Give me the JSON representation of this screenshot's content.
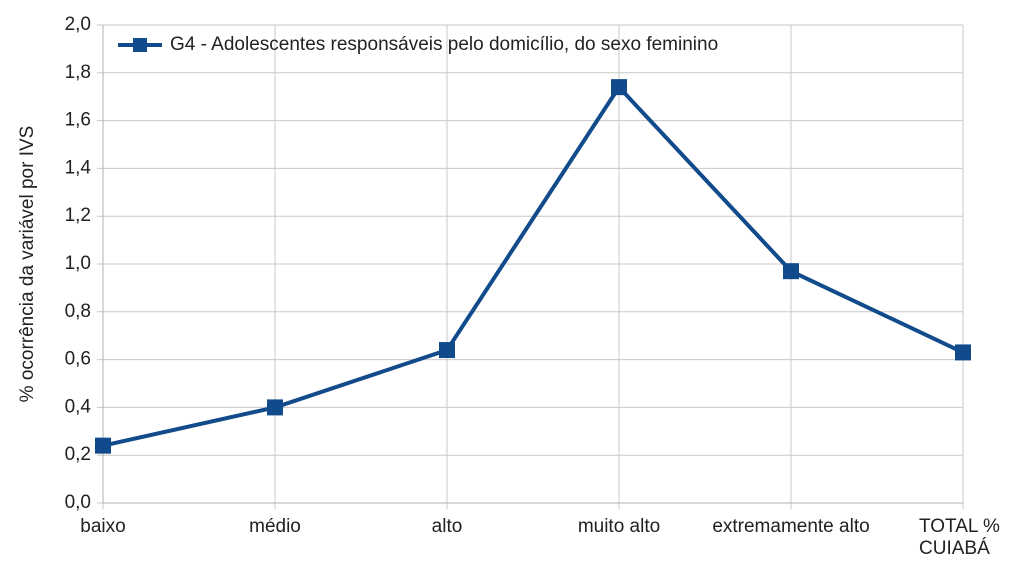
{
  "chart_data": {
    "type": "line",
    "ylabel": "% ocorrência da variável por IVS",
    "categories": [
      "baixo",
      "médio",
      "alto",
      "muito alto",
      "extremamente alto",
      "TOTAL % CUIABÁ"
    ],
    "series": [
      {
        "name": "G4 - Adolescentes responsáveis pelo domicílio, do sexo feminino",
        "color": "#114b8c",
        "values": [
          0.24,
          0.4,
          0.64,
          1.74,
          0.97,
          0.63
        ]
      }
    ],
    "ylim": [
      0,
      2
    ],
    "yticks": [
      {
        "value": 0,
        "label": "0,0"
      },
      {
        "value": 0.2,
        "label": "0,2"
      },
      {
        "value": 0.4,
        "label": "0,4"
      },
      {
        "value": 0.6,
        "label": "0,6"
      },
      {
        "value": 0.8,
        "label": "0,8"
      },
      {
        "value": 1,
        "label": "1,0"
      },
      {
        "value": 1.2,
        "label": "1,2"
      },
      {
        "value": 1.4,
        "label": "1,4"
      },
      {
        "value": 1.6,
        "label": "1,6"
      },
      {
        "value": 1.8,
        "label": "1,8"
      },
      {
        "value": 2,
        "label": "2,0"
      }
    ],
    "grid": true,
    "legend": "top-left"
  }
}
